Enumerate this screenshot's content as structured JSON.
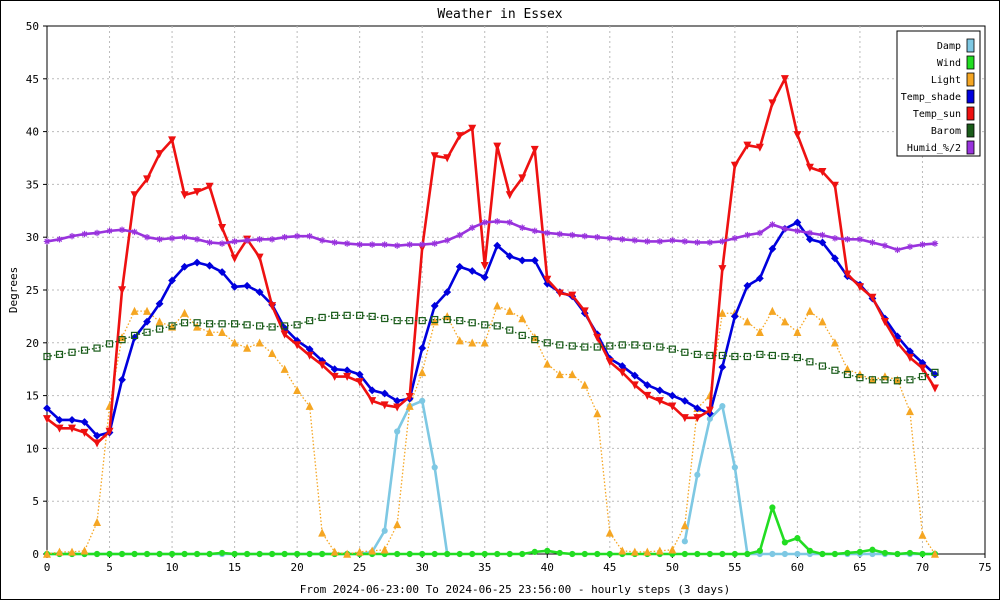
{
  "chart_data": {
    "type": "line",
    "title": "Weather in Essex",
    "xlabel": "From 2024-06-23:00 To 2024-06-25 23:56:00 - hourly steps (3 days)",
    "ylabel": "Degrees",
    "xlim": [
      0,
      75
    ],
    "ylim": [
      0,
      50
    ],
    "x_ticks": [
      0,
      5,
      10,
      15,
      20,
      25,
      30,
      35,
      40,
      45,
      50,
      55,
      60,
      65,
      70,
      75
    ],
    "y_ticks": [
      0,
      5,
      10,
      15,
      20,
      25,
      30,
      35,
      40,
      45,
      50
    ],
    "grid": true,
    "legend_position": "top-right",
    "series": [
      {
        "name": "Damp",
        "color": "#7ec8e3",
        "style": "solid",
        "marker": "circle",
        "values": [
          0,
          0,
          0,
          0,
          0,
          0,
          0,
          0,
          0,
          0,
          0,
          0,
          0,
          0,
          0,
          0,
          0,
          0,
          0,
          0,
          0,
          0,
          0,
          0,
          0,
          0,
          0.2,
          2.2,
          11.6,
          14,
          14.5,
          8.2,
          0,
          null,
          null,
          null,
          null,
          null,
          null,
          null,
          null,
          null,
          null,
          null,
          null,
          null,
          null,
          null,
          null,
          null,
          null,
          1.2,
          7.5,
          12.8,
          14,
          8.2,
          0,
          0,
          0,
          0,
          0,
          0,
          0,
          0,
          0,
          0,
          0,
          0,
          0,
          0,
          0,
          0
        ]
      },
      {
        "name": "Wind",
        "color": "#22dd22",
        "style": "solid",
        "marker": "circle",
        "values": [
          0,
          0,
          0,
          0,
          0,
          0,
          0,
          0,
          0,
          0,
          0,
          0,
          0,
          0,
          0.1,
          0,
          0,
          0,
          0,
          0,
          0,
          0,
          0,
          0,
          0,
          0,
          0,
          0,
          0,
          0,
          0,
          0,
          0,
          0,
          0,
          0,
          0,
          0,
          0,
          0.2,
          0.3,
          0.1,
          0,
          0,
          0,
          0,
          0,
          0,
          0,
          0,
          0,
          0,
          0,
          0,
          0,
          0,
          0,
          0.3,
          4.4,
          1.1,
          1.5,
          0.3,
          0,
          0,
          0.1,
          0.2,
          0.4,
          0.1,
          0,
          0.1,
          0,
          0
        ]
      },
      {
        "name": "Light",
        "color": "#f5a623",
        "style": "dotted",
        "marker": "triangle",
        "values": [
          0,
          0.2,
          0.2,
          0.3,
          3,
          14,
          20.5,
          23,
          23,
          22,
          21.5,
          22.8,
          21.5,
          21,
          21,
          20,
          19.5,
          20,
          19,
          17.5,
          15.5,
          14,
          2,
          0.2,
          0,
          0.2,
          0.3,
          0.4,
          2.8,
          14,
          17.2,
          22,
          22.5,
          20.2,
          20,
          20,
          23.5,
          23,
          22.3,
          20.5,
          18,
          17,
          17,
          16,
          13.3,
          2,
          0.3,
          0.2,
          0.2,
          0.3,
          0.4,
          2.7,
          13.8,
          15,
          22.8,
          22.8,
          22,
          21,
          23,
          22,
          21,
          23,
          22,
          20,
          17.5,
          17,
          16.5,
          16.8,
          16.5,
          13.5,
          1.8,
          0
        ]
      },
      {
        "name": "Temp_shade",
        "color": "#0000dd",
        "style": "solid",
        "marker": "diamond",
        "values": [
          13.8,
          12.7,
          12.7,
          12.5,
          11.2,
          11.5,
          16.5,
          20.5,
          22,
          23.7,
          25.9,
          27.2,
          27.6,
          27.3,
          26.7,
          25.3,
          25.4,
          24.8,
          23.6,
          21.4,
          20.2,
          19.4,
          18.3,
          17.5,
          17.4,
          17,
          15.5,
          15.2,
          14.5,
          14.7,
          19.5,
          23.5,
          24.8,
          27.2,
          26.8,
          26.2,
          29.2,
          28.2,
          27.8,
          27.8,
          25.6,
          24.8,
          24.4,
          22.8,
          20.8,
          18.5,
          17.8,
          16.9,
          16,
          15.5,
          15,
          14.5,
          13.8,
          13.3,
          17.7,
          22.5,
          25.4,
          26.1,
          28.9,
          30.8,
          31.4,
          29.8,
          29.5,
          28,
          26.3,
          25.5,
          24.2,
          22.3,
          20.6,
          19.2,
          18.1,
          17
        ]
      },
      {
        "name": "Temp_sun",
        "color": "#ee1111",
        "style": "solid",
        "marker": "triangle-down",
        "values": [
          12.8,
          11.9,
          11.9,
          11.5,
          10.5,
          11.6,
          25,
          34,
          35.5,
          37.9,
          39.2,
          34,
          34.3,
          34.8,
          30.9,
          28,
          29.8,
          28.1,
          23.5,
          20.8,
          19.8,
          18.8,
          17.9,
          16.8,
          16.8,
          16.3,
          14.5,
          14.1,
          13.9,
          14.9,
          29,
          37.7,
          37.5,
          39.6,
          40.3,
          27.3,
          38.6,
          34,
          35.6,
          38.3,
          26,
          24.7,
          24.5,
          23,
          20.5,
          18.2,
          17.2,
          16,
          15,
          14.5,
          14,
          12.9,
          12.9,
          13.6,
          27,
          36.8,
          38.7,
          38.5,
          42.7,
          45,
          39.7,
          36.6,
          36.2,
          34.9,
          26.5,
          25.3,
          24.3,
          22,
          20,
          18.6,
          17.6,
          15.7
        ]
      },
      {
        "name": "Barom",
        "color": "#1a5c1a",
        "style": "dotted",
        "marker": "square",
        "values": [
          18.7,
          18.9,
          19.1,
          19.3,
          19.5,
          19.9,
          20.3,
          20.7,
          21,
          21.3,
          21.6,
          21.9,
          21.9,
          21.8,
          21.8,
          21.8,
          21.7,
          21.6,
          21.5,
          21.6,
          21.7,
          22.1,
          22.4,
          22.6,
          22.6,
          22.6,
          22.5,
          22.3,
          22.1,
          22.1,
          22.1,
          22.2,
          22.2,
          22.1,
          21.9,
          21.7,
          21.6,
          21.2,
          20.7,
          20.3,
          20,
          19.8,
          19.7,
          19.6,
          19.6,
          19.7,
          19.8,
          19.8,
          19.7,
          19.6,
          19.4,
          19.1,
          18.9,
          18.8,
          18.8,
          18.7,
          18.7,
          18.9,
          18.8,
          18.7,
          18.6,
          18.2,
          17.8,
          17.4,
          17,
          16.7,
          16.5,
          16.5,
          16.4,
          16.5,
          16.8,
          17.2
        ]
      },
      {
        "name": "Humid_%/2",
        "color": "#9933dd",
        "style": "solid",
        "marker": "star",
        "values": [
          29.6,
          29.8,
          30.1,
          30.3,
          30.4,
          30.6,
          30.7,
          30.5,
          30,
          29.8,
          29.9,
          30,
          29.8,
          29.5,
          29.4,
          29.6,
          29.7,
          29.8,
          29.8,
          30,
          30.1,
          30.1,
          29.7,
          29.5,
          29.4,
          29.3,
          29.3,
          29.3,
          29.2,
          29.3,
          29.3,
          29.4,
          29.7,
          30.2,
          30.9,
          31.4,
          31.5,
          31.4,
          30.9,
          30.6,
          30.4,
          30.3,
          30.2,
          30.1,
          30,
          29.9,
          29.8,
          29.7,
          29.6,
          29.6,
          29.7,
          29.6,
          29.5,
          29.5,
          29.6,
          29.9,
          30.2,
          30.4,
          31.2,
          30.8,
          30.6,
          30.4,
          30.2,
          29.9,
          29.8,
          29.8,
          29.5,
          29.2,
          28.8,
          29.1,
          29.3,
          29.4
        ]
      }
    ]
  }
}
